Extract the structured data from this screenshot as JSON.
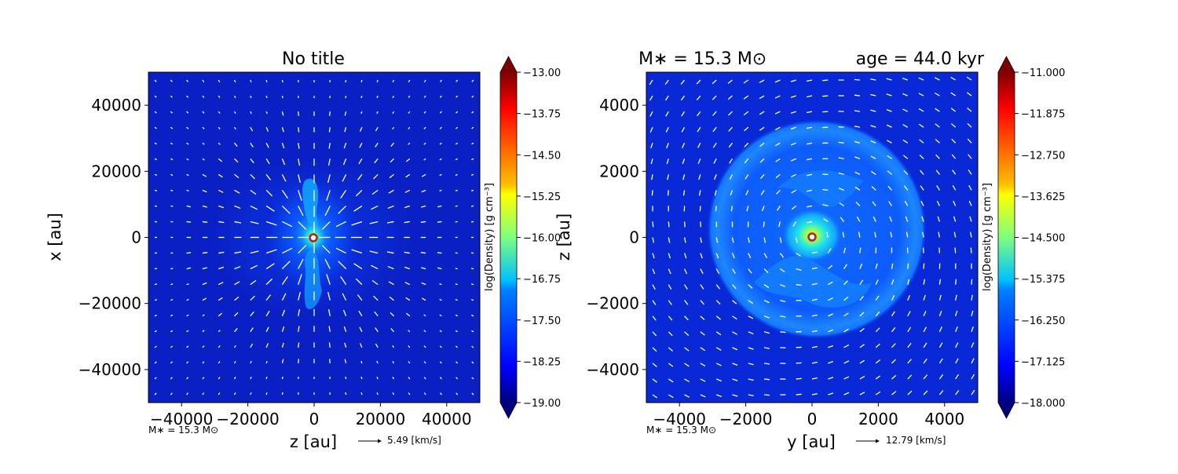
{
  "chart_data": [
    {
      "type": "heatmap",
      "title": "No title",
      "xlabel": "z [au]",
      "ylabel": "x [au]",
      "xlim": [
        -50000,
        50000
      ],
      "ylim": [
        -50000,
        50000
      ],
      "xticks": [
        "−40000",
        "−20000",
        "0",
        "20000",
        "40000"
      ],
      "xtick_values": [
        -40000,
        -20000,
        0,
        20000,
        40000
      ],
      "yticks": [
        "40000",
        "20000",
        "0",
        "−20000",
        "−40000"
      ],
      "ytick_values": [
        40000,
        20000,
        0,
        -20000,
        -40000
      ],
      "colorbar": {
        "label": "log(Density) [g cm⁻³]",
        "min": -19.0,
        "max": -13.0,
        "ticks": [
          "−13.00",
          "−13.75",
          "−14.50",
          "−15.25",
          "−16.00",
          "−16.75",
          "−17.50",
          "−18.25",
          "−19.00"
        ]
      },
      "mass_label": "M∗ = 15.3 M⊙",
      "arrow_label": "5.49 [km/s]",
      "star_position": [
        0,
        0
      ],
      "grid": false,
      "field_color": "#0a1fc4",
      "accent": "#b22222"
    },
    {
      "type": "heatmap",
      "title_left": "M∗ = 15.3 M⊙",
      "title_right": "age = 44.0 kyr",
      "xlabel": "y [au]",
      "ylabel": "z [au]",
      "xlim": [
        -5000,
        5000
      ],
      "ylim": [
        -5000,
        5000
      ],
      "xticks": [
        "−4000",
        "−2000",
        "0",
        "2000",
        "4000"
      ],
      "xtick_values": [
        -4000,
        -2000,
        0,
        2000,
        4000
      ],
      "yticks": [
        "4000",
        "2000",
        "0",
        "−2000",
        "−4000"
      ],
      "ytick_values": [
        4000,
        2000,
        0,
        -2000,
        -4000
      ],
      "colorbar": {
        "label": "log(Density) [g cm⁻³]",
        "min": -18.0,
        "max": -11.0,
        "ticks": [
          "−11.000",
          "−11.875",
          "−12.750",
          "−13.625",
          "−14.500",
          "−15.375",
          "−16.250",
          "−17.125",
          "−18.000"
        ]
      },
      "mass_label": "M∗ = 15.3 M⊙",
      "arrow_label": "12.79 [km/s]",
      "star_position": [
        0,
        0
      ],
      "grid": false,
      "field_color": "#0a2de0",
      "accent": "#b22222"
    }
  ]
}
